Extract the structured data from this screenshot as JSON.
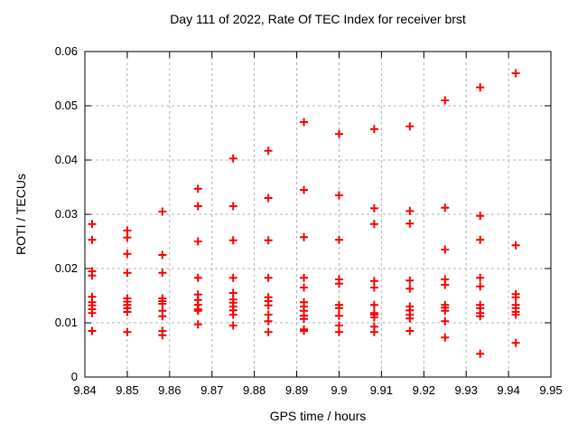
{
  "chart_data": {
    "type": "scatter",
    "title": "Day 111 of 2022, Rate Of TEC Index for receiver brst",
    "xlabel": "GPS time / hours",
    "ylabel": "ROTI / TECUs",
    "xlim": [
      9.84,
      9.95
    ],
    "ylim": [
      0,
      0.06
    ],
    "grid": true,
    "grid_style": "dashed-gray",
    "legend": "none",
    "marker": {
      "shape": "plus",
      "color": "#ff0000",
      "size": 9
    },
    "x_tick_vals": [
      9.84,
      9.85,
      9.86,
      9.87,
      9.88,
      9.89,
      9.9,
      9.91,
      9.92,
      9.93,
      9.94,
      9.95
    ],
    "x_tick_labels": [
      "9.84",
      "9.85",
      "9.86",
      "9.87",
      "9.88",
      "9.89",
      "9.9",
      "9.91",
      "9.92",
      "9.93",
      "9.94",
      "9.95"
    ],
    "y_tick_vals": [
      0,
      0.01,
      0.02,
      0.03,
      0.04,
      0.05,
      0.06
    ],
    "y_tick_labels": [
      "0",
      "0.01",
      "0.02",
      "0.03",
      "0.04",
      "0.05",
      "0.06"
    ],
    "series": [
      {
        "name": "ROTI",
        "points": [
          [
            9.8417,
            0.0282
          ],
          [
            9.8417,
            0.0253
          ],
          [
            9.8417,
            0.0195
          ],
          [
            9.8417,
            0.0187
          ],
          [
            9.8417,
            0.0148
          ],
          [
            9.8417,
            0.0138
          ],
          [
            9.8417,
            0.0132
          ],
          [
            9.8417,
            0.0125
          ],
          [
            9.8417,
            0.0118
          ],
          [
            9.8417,
            0.0085
          ],
          [
            9.85,
            0.027
          ],
          [
            9.85,
            0.0257
          ],
          [
            9.85,
            0.0227
          ],
          [
            9.85,
            0.0192
          ],
          [
            9.85,
            0.0145
          ],
          [
            9.85,
            0.0139
          ],
          [
            9.85,
            0.0133
          ],
          [
            9.85,
            0.0127
          ],
          [
            9.85,
            0.012
          ],
          [
            9.85,
            0.0083
          ],
          [
            9.8583,
            0.0305
          ],
          [
            9.8583,
            0.0225
          ],
          [
            9.8583,
            0.0192
          ],
          [
            9.8583,
            0.0145
          ],
          [
            9.8583,
            0.014
          ],
          [
            9.8583,
            0.0135
          ],
          [
            9.8583,
            0.0122
          ],
          [
            9.8583,
            0.0112
          ],
          [
            9.8583,
            0.0085
          ],
          [
            9.8583,
            0.0077
          ],
          [
            9.8667,
            0.0347
          ],
          [
            9.8667,
            0.0315
          ],
          [
            9.8667,
            0.025
          ],
          [
            9.8667,
            0.0183
          ],
          [
            9.8667,
            0.0152
          ],
          [
            9.8667,
            0.0142
          ],
          [
            9.8667,
            0.0133
          ],
          [
            9.8667,
            0.0125
          ],
          [
            9.8667,
            0.0122
          ],
          [
            9.8667,
            0.0097
          ],
          [
            9.875,
            0.0403
          ],
          [
            9.875,
            0.0315
          ],
          [
            9.875,
            0.0252
          ],
          [
            9.875,
            0.0183
          ],
          [
            9.875,
            0.0155
          ],
          [
            9.875,
            0.0143
          ],
          [
            9.875,
            0.0137
          ],
          [
            9.875,
            0.013
          ],
          [
            9.875,
            0.0123
          ],
          [
            9.875,
            0.0115
          ],
          [
            9.875,
            0.0095
          ],
          [
            9.8833,
            0.0417
          ],
          [
            9.8833,
            0.033
          ],
          [
            9.8833,
            0.0252
          ],
          [
            9.8833,
            0.0183
          ],
          [
            9.8833,
            0.0147
          ],
          [
            9.8833,
            0.014
          ],
          [
            9.8833,
            0.0132
          ],
          [
            9.8833,
            0.0115
          ],
          [
            9.8833,
            0.0103
          ],
          [
            9.8833,
            0.0083
          ],
          [
            9.8917,
            0.047
          ],
          [
            9.8917,
            0.0345
          ],
          [
            9.8917,
            0.0258
          ],
          [
            9.8917,
            0.0183
          ],
          [
            9.8917,
            0.0165
          ],
          [
            9.8917,
            0.0138
          ],
          [
            9.8917,
            0.013
          ],
          [
            9.8917,
            0.0122
          ],
          [
            9.8917,
            0.0113
          ],
          [
            9.8917,
            0.0107
          ],
          [
            9.8917,
            0.0088
          ],
          [
            9.8917,
            0.0085
          ],
          [
            9.9,
            0.0448
          ],
          [
            9.9,
            0.0335
          ],
          [
            9.9,
            0.0253
          ],
          [
            9.9,
            0.018
          ],
          [
            9.9,
            0.0172
          ],
          [
            9.9,
            0.0133
          ],
          [
            9.9,
            0.0127
          ],
          [
            9.9,
            0.0113
          ],
          [
            9.9,
            0.0095
          ],
          [
            9.9,
            0.0083
          ],
          [
            9.9083,
            0.0457
          ],
          [
            9.9083,
            0.0311
          ],
          [
            9.9083,
            0.0282
          ],
          [
            9.9083,
            0.0177
          ],
          [
            9.9083,
            0.0165
          ],
          [
            9.9083,
            0.0133
          ],
          [
            9.9083,
            0.0118
          ],
          [
            9.9083,
            0.0115
          ],
          [
            9.9083,
            0.011
          ],
          [
            9.9083,
            0.0093
          ],
          [
            9.9083,
            0.0083
          ],
          [
            9.9167,
            0.0462
          ],
          [
            9.9167,
            0.0306
          ],
          [
            9.9167,
            0.0283
          ],
          [
            9.9167,
            0.0178
          ],
          [
            9.9167,
            0.0163
          ],
          [
            9.9167,
            0.013
          ],
          [
            9.9167,
            0.0123
          ],
          [
            9.9167,
            0.0115
          ],
          [
            9.9167,
            0.0108
          ],
          [
            9.9167,
            0.0085
          ],
          [
            9.925,
            0.051
          ],
          [
            9.925,
            0.0312
          ],
          [
            9.925,
            0.0235
          ],
          [
            9.925,
            0.018
          ],
          [
            9.925,
            0.017
          ],
          [
            9.925,
            0.0133
          ],
          [
            9.925,
            0.0128
          ],
          [
            9.925,
            0.0122
          ],
          [
            9.925,
            0.0103
          ],
          [
            9.925,
            0.0073
          ],
          [
            9.9333,
            0.0534
          ],
          [
            9.9333,
            0.0297
          ],
          [
            9.9333,
            0.0253
          ],
          [
            9.9333,
            0.0183
          ],
          [
            9.9333,
            0.0167
          ],
          [
            9.9333,
            0.0133
          ],
          [
            9.9333,
            0.0127
          ],
          [
            9.9333,
            0.0118
          ],
          [
            9.9333,
            0.0112
          ],
          [
            9.9333,
            0.0043
          ],
          [
            9.9417,
            0.056
          ],
          [
            9.9417,
            0.0243
          ],
          [
            9.9417,
            0.0153
          ],
          [
            9.9417,
            0.0147
          ],
          [
            9.9417,
            0.0133
          ],
          [
            9.9417,
            0.0127
          ],
          [
            9.9417,
            0.012
          ],
          [
            9.9417,
            0.0115
          ],
          [
            9.9417,
            0.0063
          ]
        ]
      }
    ]
  }
}
